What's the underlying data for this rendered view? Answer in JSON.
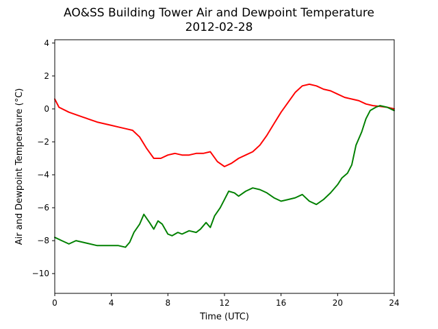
{
  "chart_data": {
    "type": "line",
    "title": "AO&SS Building Tower Air and Dewpoint Temperature",
    "subtitle": "2012-02-28",
    "xlabel": "Time (UTC)",
    "ylabel": "Air and Dewpoint Temperature (°C)",
    "xlim": [
      0,
      24
    ],
    "ylim": [
      -11.2,
      4.2
    ],
    "xticks": [
      0,
      4,
      8,
      12,
      16,
      20,
      24
    ],
    "yticks": [
      4,
      2,
      0,
      -2,
      -4,
      -6,
      -8,
      -10
    ],
    "ytick_labels": [
      "4",
      "2",
      "0",
      "−2",
      "−4",
      "−6",
      "−8",
      "−10"
    ],
    "grid": false,
    "series": [
      {
        "color": "#ff0000",
        "x": [
          0,
          0.3,
          1,
          2,
          3,
          3.5,
          4,
          4.5,
          5,
          5.5,
          6,
          6.5,
          7,
          7.5,
          8,
          8.5,
          9,
          9.5,
          10,
          10.5,
          11,
          11.5,
          12,
          12.5,
          13,
          13.5,
          14,
          14.5,
          15,
          15.5,
          16,
          16.5,
          17,
          17.5,
          18,
          18.5,
          19,
          19.5,
          20,
          20.5,
          21,
          21.5,
          22,
          22.5,
          23,
          23.5,
          24
        ],
        "y": [
          0.6,
          0.1,
          -0.2,
          -0.5,
          -0.8,
          -0.9,
          -1.0,
          -1.1,
          -1.2,
          -1.3,
          -1.7,
          -2.4,
          -3.0,
          -3.0,
          -2.8,
          -2.7,
          -2.8,
          -2.8,
          -2.7,
          -2.7,
          -2.6,
          -3.2,
          -3.5,
          -3.3,
          -3.0,
          -2.8,
          -2.6,
          -2.2,
          -1.6,
          -0.9,
          -0.2,
          0.4,
          1.0,
          1.4,
          1.5,
          1.4,
          1.2,
          1.1,
          0.9,
          0.7,
          0.6,
          0.5,
          0.3,
          0.2,
          0.15,
          0.1,
          0.0
        ]
      },
      {
        "color": "#008000",
        "x": [
          0,
          0.5,
          1,
          1.5,
          2,
          3,
          4,
          4.5,
          5,
          5.3,
          5.6,
          6,
          6.3,
          6.7,
          7,
          7.3,
          7.6,
          8,
          8.3,
          8.7,
          9,
          9.5,
          10,
          10.3,
          10.7,
          11,
          11.3,
          11.7,
          12,
          12.3,
          12.7,
          13,
          13.5,
          14,
          14.5,
          15,
          15.5,
          16,
          16.5,
          17,
          17.5,
          18,
          18.5,
          19,
          19.5,
          20,
          20.3,
          20.7,
          21,
          21.3,
          21.7,
          22,
          22.3,
          22.7,
          23,
          23.5,
          24
        ],
        "y": [
          -7.8,
          -8.0,
          -8.2,
          -8.0,
          -8.1,
          -8.3,
          -8.3,
          -8.3,
          -8.4,
          -8.1,
          -7.5,
          -7.0,
          -6.4,
          -6.9,
          -7.3,
          -6.8,
          -7.0,
          -7.6,
          -7.7,
          -7.5,
          -7.6,
          -7.4,
          -7.5,
          -7.3,
          -6.9,
          -7.2,
          -6.5,
          -6.0,
          -5.5,
          -5.0,
          -5.1,
          -5.3,
          -5.0,
          -4.8,
          -4.9,
          -5.1,
          -5.4,
          -5.6,
          -5.5,
          -5.4,
          -5.2,
          -5.6,
          -5.8,
          -5.5,
          -5.1,
          -4.6,
          -4.2,
          -3.9,
          -3.4,
          -2.2,
          -1.4,
          -0.6,
          -0.1,
          0.1,
          0.2,
          0.1,
          -0.1
        ]
      }
    ]
  }
}
